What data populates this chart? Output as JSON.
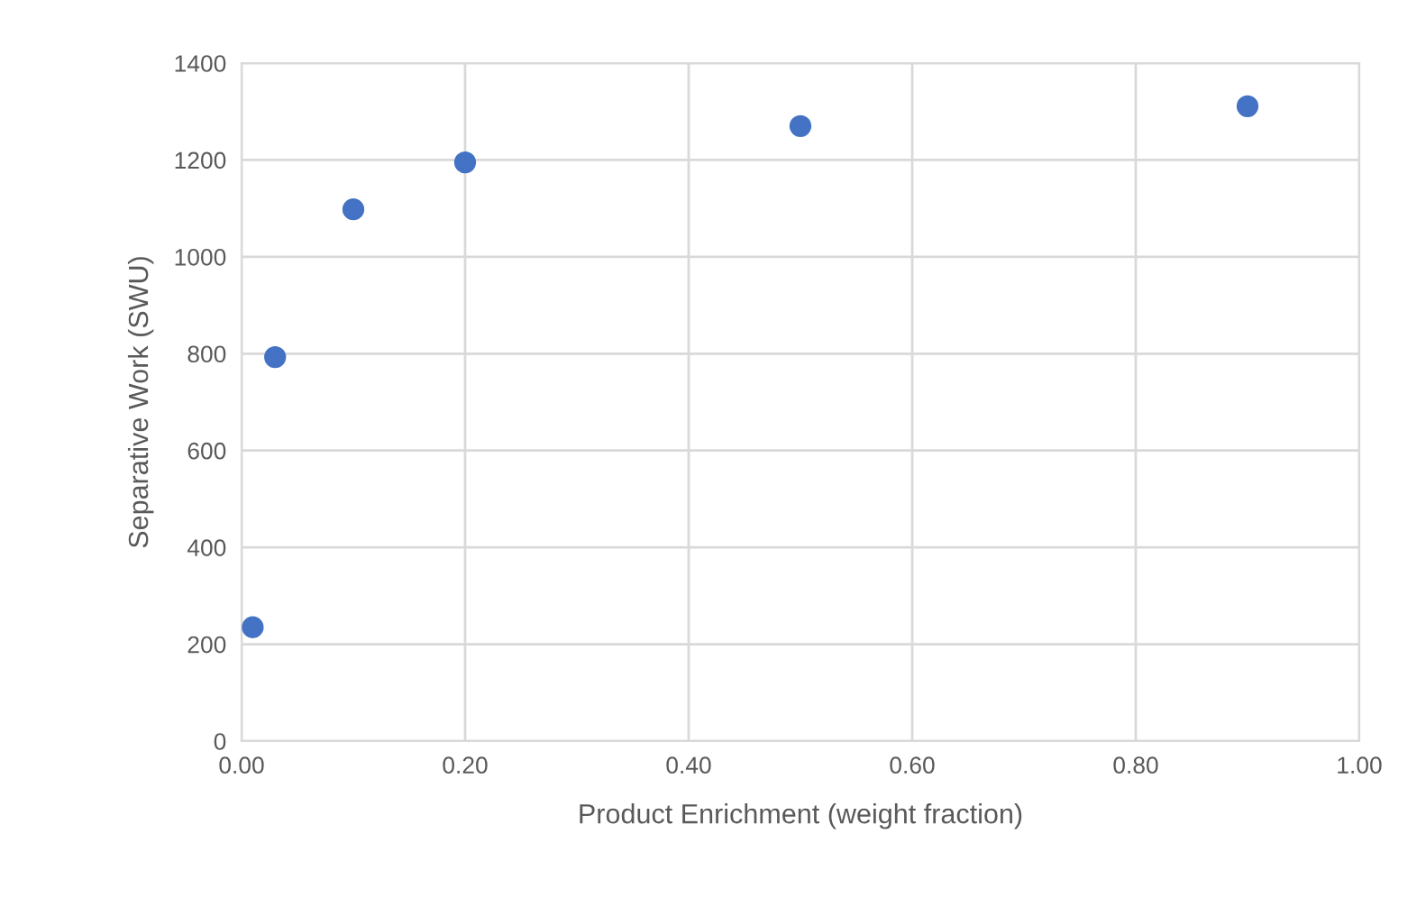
{
  "chart_data": {
    "type": "scatter",
    "xlabel": "Product Enrichment (weight fraction)",
    "ylabel": "Separative Work (SWU)",
    "x": [
      0.01,
      0.03,
      0.1,
      0.2,
      0.5,
      0.9
    ],
    "series": [
      {
        "color": "#4472c4",
        "values": [
          235,
          793,
          1098,
          1195,
          1270,
          1311
        ]
      }
    ],
    "xlim": [
      0,
      1
    ],
    "xticks": [
      {
        "value": 0,
        "label": "0.00"
      },
      {
        "value": 0.2,
        "label": "0.20"
      },
      {
        "value": 0.4,
        "label": "0.40"
      },
      {
        "value": 0.6,
        "label": "0.60"
      },
      {
        "value": 0.8,
        "label": "0.80"
      },
      {
        "value": 1,
        "label": "1.00"
      }
    ],
    "ylim": [
      0,
      1400
    ],
    "yticks": [
      0,
      200,
      400,
      600,
      800,
      1000,
      1200,
      1400
    ],
    "grid": true,
    "marker": "circle"
  }
}
